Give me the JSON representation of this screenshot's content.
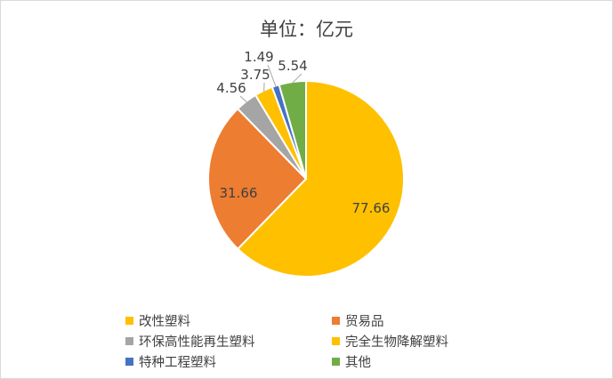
{
  "chart_data": {
    "type": "pie",
    "title": "单位：亿元",
    "categories": [
      "改性塑料",
      "贸易品",
      "环保高性能再生塑料",
      "完全生物降解塑料",
      "特种工程塑料",
      "其他"
    ],
    "values": [
      77.66,
      31.66,
      4.56,
      3.75,
      1.49,
      5.54
    ],
    "data_labels": [
      "77.66",
      "31.66",
      "4.56",
      "3.75",
      "1.49",
      "5.54"
    ],
    "colors": [
      "#FFC000",
      "#ED7D31",
      "#A5A5A5",
      "#FFC000",
      "#4472C4",
      "#70AD47"
    ],
    "legend_position": "bottom"
  }
}
